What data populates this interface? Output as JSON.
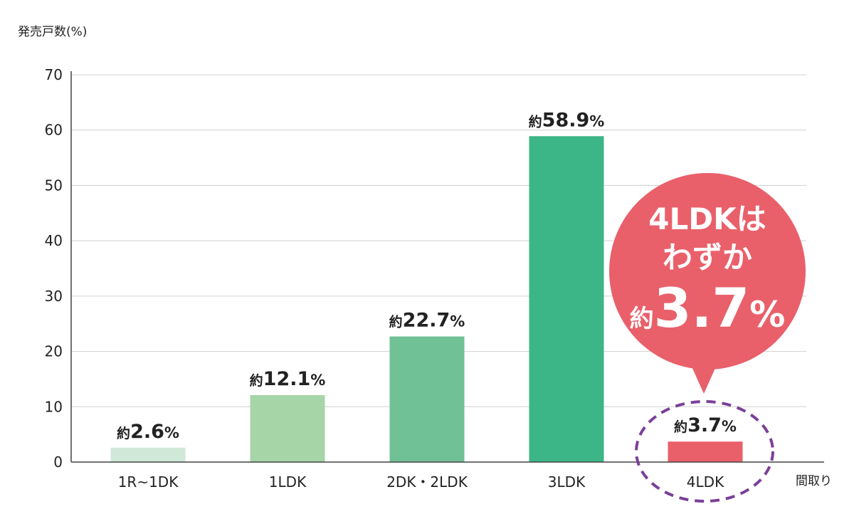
{
  "chart_data": {
    "type": "bar",
    "ylabel": "発売戸数(%)",
    "xlabel": "間取り",
    "ylim": [
      0,
      70
    ],
    "yticks": [
      0,
      10,
      20,
      30,
      40,
      50,
      60,
      70
    ],
    "grid": true,
    "categories": [
      "1R~1DK",
      "1LDK",
      "2DK・2LDK",
      "3LDK",
      "4LDK"
    ],
    "values": [
      2.6,
      12.1,
      22.7,
      58.9,
      3.7
    ],
    "data_labels": [
      {
        "prefix": "約",
        "number": "2.6",
        "unit": "%"
      },
      {
        "prefix": "約",
        "number": "12.1",
        "unit": "%"
      },
      {
        "prefix": "約",
        "number": "22.7",
        "unit": "%"
      },
      {
        "prefix": "約",
        "number": "58.9",
        "unit": "%"
      },
      {
        "prefix": "約",
        "number": "3.7",
        "unit": "%"
      }
    ],
    "colors": [
      "#cfe8d8",
      "#a6d5a7",
      "#70c196",
      "#3cb587",
      "#e9606a"
    ],
    "highlight_index": 4,
    "annotation": {
      "line1": "4LDKは",
      "line2": "わずか",
      "prefix": "約",
      "number": "3.7",
      "unit": "%",
      "bubble_color": "#e9606a",
      "circle_color": "#7b3f98"
    }
  }
}
